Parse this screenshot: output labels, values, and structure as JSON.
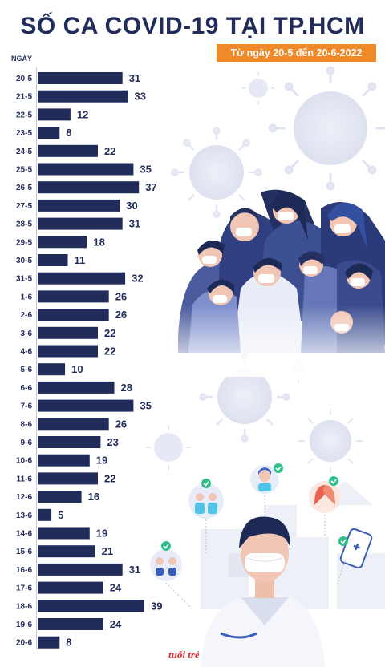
{
  "title": "SỐ CA COVID-19 TẠI TP.HCM",
  "subtitle": "Từ ngày 20-5 đến 20-6-2022",
  "logo_text": "tuổi trẻ",
  "colors": {
    "bar": "#212c5b",
    "accent": "#f0892a",
    "logo": "#e8262d"
  },
  "chart_data": {
    "type": "bar",
    "orientation": "horizontal",
    "title": "SỐ CA COVID-19 TẠI TP.HCM",
    "subtitle": "Từ ngày 20-5 đến 20-6-2022",
    "ylabel": "NGÀY",
    "xlabel": "",
    "xlim": [
      0,
      40
    ],
    "grid": false,
    "categories": [
      "20-5",
      "21-5",
      "22-5",
      "23-5",
      "24-5",
      "25-5",
      "26-5",
      "27-5",
      "28-5",
      "29-5",
      "30-5",
      "31-5",
      "1-6",
      "2-6",
      "3-6",
      "4-6",
      "5-6",
      "6-6",
      "7-6",
      "8-6",
      "9-6",
      "10-6",
      "11-6",
      "12-6",
      "13-6",
      "14-6",
      "15-6",
      "16-6",
      "17-6",
      "18-6",
      "19-6",
      "20-6"
    ],
    "values": [
      31,
      33,
      12,
      8,
      22,
      35,
      37,
      30,
      31,
      18,
      11,
      32,
      26,
      26,
      22,
      22,
      10,
      28,
      35,
      26,
      23,
      19,
      22,
      16,
      5,
      19,
      21,
      31,
      24,
      39,
      24,
      8
    ]
  }
}
